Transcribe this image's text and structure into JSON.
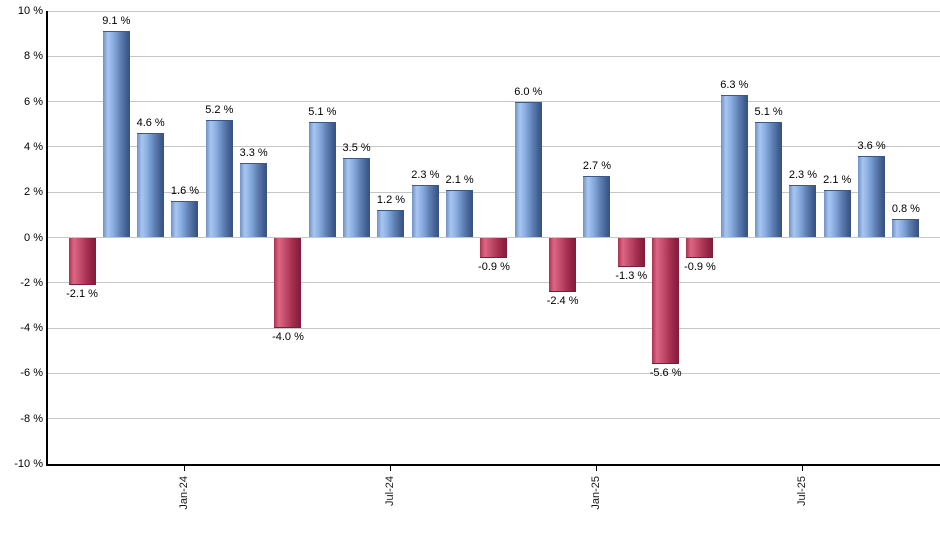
{
  "chart_data": {
    "type": "bar",
    "title": "",
    "xlabel": "",
    "ylabel": "",
    "ylim": [
      -10,
      10
    ],
    "y_tick_step": 2,
    "grid": "horizontal",
    "legend": "none",
    "y_tick_labels": [
      "10 %",
      "8 %",
      "6 %",
      "4 %",
      "2 %",
      "0 %",
      "-2 %",
      "-4 %",
      "-6 %",
      "-8 %",
      "-10 %"
    ],
    "x_tick_labels": [
      "Jan-24",
      "Jul-24",
      "Jan-25",
      "Jul-25"
    ],
    "x_tick_bar_indexes": [
      3,
      9,
      15,
      21
    ],
    "bars": [
      {
        "value": -2.1,
        "label": "-2.1 %"
      },
      {
        "value": 9.1,
        "label": "9.1 %"
      },
      {
        "value": 4.6,
        "label": "4.6 %"
      },
      {
        "value": 1.6,
        "label": "1.6 %"
      },
      {
        "value": 5.2,
        "label": "5.2 %"
      },
      {
        "value": 3.3,
        "label": "3.3 %"
      },
      {
        "value": -4.0,
        "label": "-4.0 %"
      },
      {
        "value": 5.1,
        "label": "5.1 %"
      },
      {
        "value": 3.5,
        "label": "3.5 %"
      },
      {
        "value": 1.2,
        "label": "1.2 %"
      },
      {
        "value": 2.3,
        "label": "2.3 %"
      },
      {
        "value": 2.1,
        "label": "2.1 %"
      },
      {
        "value": -0.9,
        "label": "-0.9 %"
      },
      {
        "value": 6.0,
        "label": "6.0 %"
      },
      {
        "value": -2.4,
        "label": "-2.4 %"
      },
      {
        "value": 2.7,
        "label": "2.7 %"
      },
      {
        "value": -1.3,
        "label": "-1.3 %"
      },
      {
        "value": -5.6,
        "label": "-5.6 %"
      },
      {
        "value": -0.9,
        "label": "-0.9 %"
      },
      {
        "value": 6.3,
        "label": "6.3 %"
      },
      {
        "value": 5.1,
        "label": "5.1 %"
      },
      {
        "value": 2.3,
        "label": "2.3 %"
      },
      {
        "value": 2.1,
        "label": "2.1 %"
      },
      {
        "value": 3.6,
        "label": "3.6 %"
      },
      {
        "value": 0.8,
        "label": "0.8 %"
      }
    ],
    "colors": {
      "positive_bar_mid": "#7ba3dd",
      "positive_bar_light": "#a9c6f1",
      "positive_bar_dark": "#38517f",
      "negative_bar_mid": "#c64e6e",
      "negative_bar_light": "#dc6683",
      "negative_bar_dark": "#841b3a",
      "gridline": "#c6c6c6",
      "axis": "#000000",
      "label_text": "#000000",
      "background": "#ffffff"
    }
  }
}
